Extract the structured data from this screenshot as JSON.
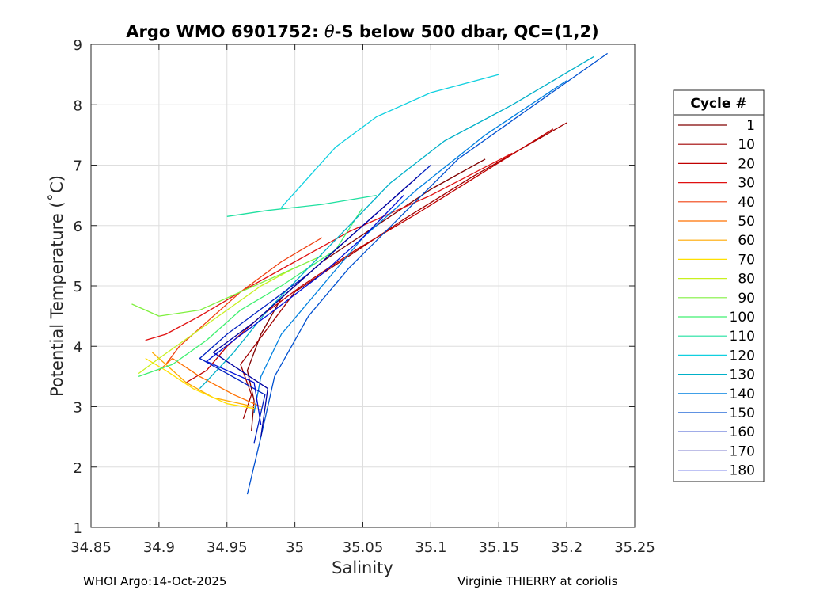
{
  "chart_data": {
    "type": "line",
    "title": "Argo WMO 6901752: θ-S below 500 dbar,  QC=(1,2)",
    "title_parts": {
      "prefix": "Argo WMO 6901752: ",
      "symbol": "θ",
      "suffix": "-S below 500 dbar,  QC=(1,2)"
    },
    "xlabel": "Salinity",
    "ylabel": "Potential Temperature (˚C)",
    "xlim": [
      34.85,
      35.25
    ],
    "ylim": [
      1,
      9
    ],
    "xticks": [
      "34.85",
      "34.9",
      "34.95",
      "35",
      "35.05",
      "35.1",
      "35.15",
      "35.2",
      "35.25"
    ],
    "yticks": [
      "1",
      "2",
      "3",
      "4",
      "5",
      "6",
      "7",
      "8",
      "9"
    ],
    "grid": true,
    "legend": {
      "title": "Cycle #",
      "placement": "right",
      "entries": [
        {
          "label": "1",
          "color": "#800000"
        },
        {
          "label": "10",
          "color": "#a00000"
        },
        {
          "label": "20",
          "color": "#c00000"
        },
        {
          "label": "30",
          "color": "#e01010"
        },
        {
          "label": "40",
          "color": "#f04010"
        },
        {
          "label": "50",
          "color": "#ff7000"
        },
        {
          "label": "60",
          "color": "#ffa800"
        },
        {
          "label": "70",
          "color": "#ffe000"
        },
        {
          "label": "80",
          "color": "#c8f020"
        },
        {
          "label": "90",
          "color": "#80f040"
        },
        {
          "label": "100",
          "color": "#40f070"
        },
        {
          "label": "110",
          "color": "#20e0a0"
        },
        {
          "label": "120",
          "color": "#10d0e0"
        },
        {
          "label": "130",
          "color": "#00b0c8"
        },
        {
          "label": "140",
          "color": "#0080e0"
        },
        {
          "label": "150",
          "color": "#0050d0"
        },
        {
          "label": "160",
          "color": "#0020c0"
        },
        {
          "label": "170",
          "color": "#0000a0"
        },
        {
          "label": "180",
          "color": "#0010d8"
        }
      ]
    },
    "series": [
      {
        "name": "1",
        "color": "#800000",
        "x": [
          34.968,
          34.97,
          34.965,
          34.975,
          34.99,
          35.02,
          35.06,
          35.1,
          35.14
        ],
        "y": [
          2.6,
          3.1,
          3.6,
          4.2,
          4.8,
          5.4,
          6.0,
          6.6,
          7.1
        ]
      },
      {
        "name": "10",
        "color": "#a00000",
        "x": [
          34.962,
          34.968,
          34.96,
          34.98,
          35.0,
          35.04,
          35.08,
          35.13,
          35.2
        ],
        "y": [
          2.8,
          3.2,
          3.7,
          4.3,
          4.9,
          5.5,
          6.1,
          6.8,
          7.7
        ]
      },
      {
        "name": "20",
        "color": "#c00000",
        "x": [
          34.92,
          34.935,
          34.95,
          34.975,
          35.005,
          35.045,
          35.09,
          35.14,
          35.19
        ],
        "y": [
          3.4,
          3.6,
          4.0,
          4.5,
          5.0,
          5.6,
          6.2,
          6.9,
          7.6
        ]
      },
      {
        "name": "30",
        "color": "#e01010",
        "x": [
          34.89,
          34.905,
          34.93,
          34.96,
          35.0,
          35.04,
          35.1,
          35.16
        ],
        "y": [
          4.1,
          4.2,
          4.5,
          4.9,
          5.4,
          5.9,
          6.5,
          7.2
        ]
      },
      {
        "name": "40",
        "color": "#f04010",
        "x": [
          34.905,
          34.915,
          34.935,
          34.96,
          34.99,
          35.02
        ],
        "y": [
          3.7,
          4.0,
          4.4,
          4.9,
          5.4,
          5.8
        ]
      },
      {
        "name": "50",
        "color": "#ff7000",
        "x": [
          34.9,
          34.91,
          34.93,
          34.955,
          34.975
        ],
        "y": [
          3.6,
          3.8,
          3.5,
          3.2,
          3.0
        ]
      },
      {
        "name": "60",
        "color": "#ffa800",
        "x": [
          34.895,
          34.905,
          34.92,
          34.94,
          34.97
        ],
        "y": [
          3.9,
          3.7,
          3.4,
          3.15,
          3.0
        ]
      },
      {
        "name": "70",
        "color": "#ffe000",
        "x": [
          34.89,
          34.905,
          34.925,
          34.95,
          34.975
        ],
        "y": [
          3.8,
          3.6,
          3.3,
          3.05,
          2.95
        ]
      },
      {
        "name": "80",
        "color": "#c8f020",
        "x": [
          34.885,
          34.9,
          34.925,
          34.95,
          34.975,
          35.0
        ],
        "y": [
          3.55,
          3.8,
          4.2,
          4.6,
          5.0,
          5.3
        ]
      },
      {
        "name": "90",
        "color": "#80f040",
        "x": [
          34.88,
          34.9,
          34.93,
          34.96,
          34.99,
          35.02
        ],
        "y": [
          4.7,
          4.5,
          4.6,
          4.9,
          5.2,
          5.5
        ]
      },
      {
        "name": "100",
        "color": "#40f070",
        "x": [
          34.885,
          34.91,
          34.935,
          34.96,
          34.99,
          35.03,
          35.05
        ],
        "y": [
          3.5,
          3.7,
          4.1,
          4.6,
          5.0,
          5.6,
          6.3
        ]
      },
      {
        "name": "110",
        "color": "#20e0a0",
        "x": [
          34.95,
          34.98,
          35.02,
          35.06
        ],
        "y": [
          6.15,
          6.25,
          6.35,
          6.5
        ]
      },
      {
        "name": "120",
        "color": "#10d0e0",
        "x": [
          34.99,
          35.01,
          35.03,
          35.06,
          35.1,
          35.15
        ],
        "y": [
          6.3,
          6.8,
          7.3,
          7.8,
          8.2,
          8.5
        ]
      },
      {
        "name": "130",
        "color": "#00b0c8",
        "x": [
          34.93,
          34.955,
          34.98,
          35.01,
          35.04,
          35.07,
          35.11,
          35.16,
          35.22
        ],
        "y": [
          3.3,
          3.9,
          4.6,
          5.3,
          6.0,
          6.7,
          7.4,
          8.0,
          8.8
        ]
      },
      {
        "name": "140",
        "color": "#0080e0",
        "x": [
          34.97,
          34.975,
          34.99,
          35.02,
          35.05,
          35.09,
          35.14,
          35.2
        ],
        "y": [
          2.9,
          3.5,
          4.2,
          5.0,
          5.8,
          6.6,
          7.5,
          8.4
        ]
      },
      {
        "name": "150",
        "color": "#0050d0",
        "x": [
          34.965,
          34.975,
          34.985,
          35.01,
          35.04,
          35.08,
          35.12,
          35.17,
          35.23
        ],
        "y": [
          1.55,
          2.5,
          3.5,
          4.5,
          5.3,
          6.2,
          7.1,
          7.9,
          8.85
        ]
      },
      {
        "name": "160",
        "color": "#0020c0",
        "x": [
          34.97,
          34.978,
          34.93,
          34.95,
          34.98,
          35.01,
          35.04,
          35.07,
          35.1
        ],
        "y": [
          2.4,
          3.2,
          3.8,
          4.2,
          4.7,
          5.2,
          5.8,
          6.4,
          7.0
        ]
      },
      {
        "name": "170",
        "color": "#0000a0",
        "x": [
          34.975,
          34.98,
          34.96,
          34.94,
          34.97,
          35.0,
          35.03,
          35.06,
          35.09
        ],
        "y": [
          2.5,
          3.3,
          3.6,
          3.9,
          4.4,
          5.0,
          5.6,
          6.2,
          6.8
        ]
      },
      {
        "name": "180",
        "color": "#0010d8",
        "x": [
          34.975,
          34.97,
          34.935,
          34.955,
          34.985,
          35.02,
          35.05,
          35.08
        ],
        "y": [
          2.7,
          3.4,
          3.75,
          4.1,
          4.6,
          5.2,
          5.8,
          6.5
        ]
      }
    ]
  },
  "footer": {
    "left": "WHOI Argo:14-Oct-2025",
    "right": "Virginie THIERRY at coriolis"
  }
}
